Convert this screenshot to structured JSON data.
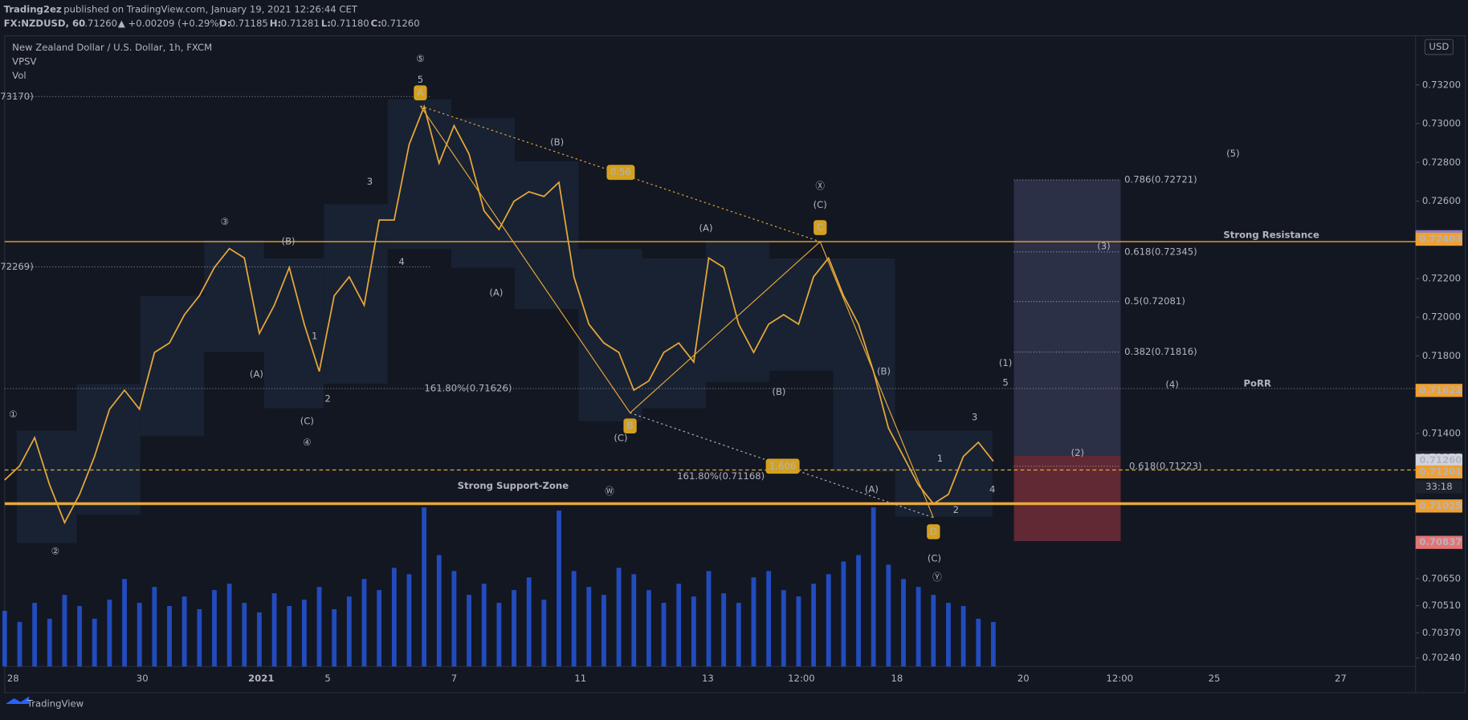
{
  "header": {
    "author": "Trading2ez",
    "published": "published on TradingView.com, January 19, 2021 12:26:44 CET",
    "symbol": "FX:NZDUSD, 60",
    "last": "0.71260",
    "change": "▲ +0.00209 (+0.29%)",
    "o_label": "O:",
    "o": "0.71185",
    "h_label": "H:",
    "h": "0.71281",
    "l_label": "L:",
    "l": "0.71180",
    "c_label": "C:",
    "c": "0.71260"
  },
  "chart_data": {
    "type": "line",
    "title": "New Zealand Dollar / U.S. Dollar, 1h, FXCM",
    "indicators": [
      "VPSV",
      "Vol"
    ],
    "currency": "USD",
    "color": "#e8a838",
    "values": [
      0.71159,
      0.71232,
      0.71378,
      0.71134,
      0.70939,
      0.71085,
      0.71281,
      0.71525,
      0.71623,
      0.71525,
      0.71818,
      0.71867,
      0.72013,
      0.72111,
      0.72257,
      0.72355,
      0.72306,
      0.71916,
      0.72062,
      0.72257,
      0.71964,
      0.7172,
      0.72111,
      0.72209,
      0.72062,
      0.72502,
      0.72502,
      0.72892,
      0.73088,
      0.72795,
      0.7299,
      0.72843,
      0.7255,
      0.72453,
      0.72599,
      0.72648,
      0.72624,
      0.72697,
      0.72209,
      0.71964,
      0.71867,
      0.71818,
      0.71623,
      0.71671,
      0.71818,
      0.71867,
      0.71769,
      0.72306,
      0.72257,
      0.71964,
      0.71818,
      0.71964,
      0.72013,
      0.71964,
      0.72209,
      0.72306,
      0.72111,
      0.71964,
      0.7172,
      0.71427,
      0.71281,
      0.71134,
      0.71036,
      0.71085,
      0.71281,
      0.71354,
      0.71256
    ],
    "volume": [
      35,
      28,
      40,
      30,
      45,
      38,
      30,
      42,
      55,
      40,
      50,
      38,
      44,
      36,
      48,
      52,
      40,
      34,
      46,
      38,
      42,
      50,
      36,
      44,
      55,
      48,
      62,
      58,
      100,
      70,
      60,
      45,
      52,
      40,
      48,
      56,
      42,
      98,
      60,
      50,
      45,
      62,
      58,
      48,
      40,
      52,
      44,
      60,
      46,
      40,
      56,
      60,
      48,
      44,
      52,
      58,
      66,
      70,
      100,
      64,
      55,
      50,
      45,
      40,
      38,
      30,
      28
    ],
    "volume_color": "#2962ff",
    "ylim": [
      0.70196,
      0.73454
    ],
    "yticks": [
      {
        "value": 0.732,
        "label": "0.73200"
      },
      {
        "value": 0.73,
        "label": "0.73000"
      },
      {
        "value": 0.728,
        "label": "0.72800"
      },
      {
        "value": 0.726,
        "label": "0.72600"
      },
      {
        "value": 0.722,
        "label": "0.72200"
      },
      {
        "value": 0.72,
        "label": "0.72000"
      },
      {
        "value": 0.718,
        "label": "0.71800"
      },
      {
        "value": 0.714,
        "label": "0.71400"
      },
      {
        "value": 0.7065,
        "label": "0.70650"
      },
      {
        "value": 0.7051,
        "label": "0.70510"
      },
      {
        "value": 0.7037,
        "label": "0.70370"
      },
      {
        "value": 0.7024,
        "label": "0.70240"
      }
    ],
    "x_labels": [
      "28",
      "30",
      "2021",
      "5",
      "7",
      "11",
      "13",
      "12:00",
      "18",
      "20",
      "12:00",
      "25",
      "27"
    ],
    "price_labels": [
      {
        "value": 0.72416,
        "label": "0.72416",
        "color": "#8e7cc3"
      },
      {
        "value": 0.72403,
        "label": "0.72403",
        "color": "#f0a030"
      },
      {
        "value": 0.71622,
        "label": "0.71622",
        "color": "#f0a030"
      },
      {
        "value": 0.71275,
        "label": "0.71275",
        "color": "#1e222d"
      },
      {
        "value": 0.7126,
        "label": "0.71260",
        "color": "#d1d4dc"
      },
      {
        "value": 0.71201,
        "label": "0.71201",
        "color": "#f0a030"
      },
      {
        "value": 0.71025,
        "label": "0.71025",
        "color": "#f0a030"
      },
      {
        "value": 0.70837,
        "label": "0.70837",
        "color": "#e57373"
      }
    ],
    "countdown": "33:18"
  },
  "annotations": [
    "⑤",
    "5",
    "3",
    "4",
    "③",
    "(B)",
    "(A)",
    "1",
    "2",
    "(C)",
    "④",
    "①",
    "②",
    "(B)",
    "(A)",
    "(C)",
    "(A)",
    "(B)",
    "Ⓧ",
    "(C)",
    "(B)",
    "(A)",
    "1",
    "2",
    "3",
    "4",
    "(C)",
    "Ⓨ",
    "Ⓦ",
    "(1)",
    "5",
    "(2)",
    "(3)",
    "(4)",
    "(5)",
    "161.80%(0.71626)",
    "161.80%(0.71168)",
    "73170)",
    "72269)"
  ],
  "zone_labels": [
    "Strong Support-Zone",
    "Strong Resistance",
    "PoRR"
  ],
  "point_labels": [
    "A",
    "B",
    "C",
    "D",
    "0.56",
    "1.606"
  ],
  "fib_labels": [
    "0.786(0.72721)",
    "0.618(0.72345)",
    "0.5(0.72081)",
    "0.382(0.71816)",
    "0.618(0.71223)"
  ],
  "footer": {
    "brand": "TradingView"
  }
}
